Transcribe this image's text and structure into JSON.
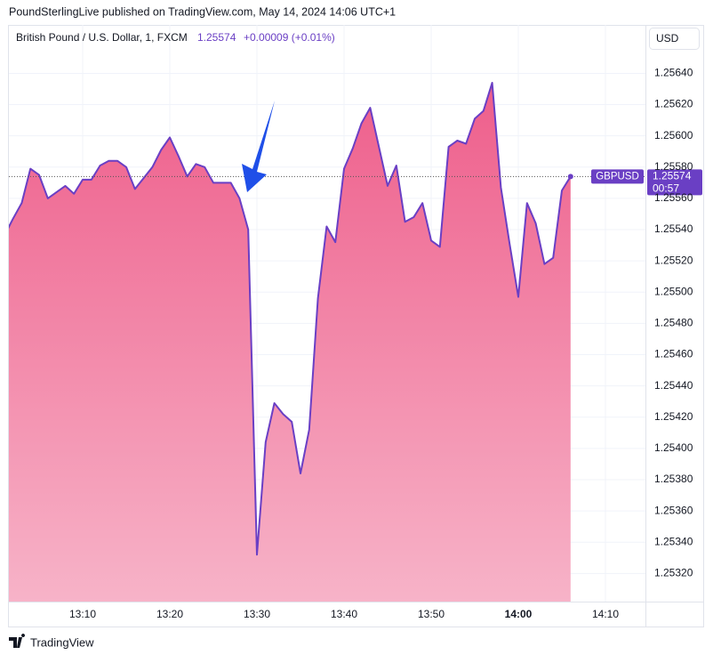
{
  "header": "PoundSterlingLive published on TradingView.com, May 14, 2024 14:06 UTC+1",
  "brand": "TradingView",
  "chart_data": {
    "type": "area",
    "legend_title": "British Pound / U.S. Dollar, 1, FXCM",
    "change": "+0.00009 (+0.01%)",
    "currency": "USD",
    "symbol": "GBPUSD",
    "countdown": "00:57",
    "line_color": "#6a3fc4",
    "fill_top": "#ee5e8b",
    "fill_bottom": "#f7b3c8",
    "x": [
      1,
      2,
      3,
      4,
      5,
      6,
      7,
      8,
      9,
      10,
      11,
      12,
      13,
      14,
      15,
      16,
      17,
      18,
      19,
      20,
      21,
      22,
      23,
      24,
      25,
      26,
      27,
      28,
      29,
      30,
      31,
      32,
      33,
      34,
      35,
      36,
      37,
      38,
      39,
      40,
      41,
      42,
      43,
      44,
      45,
      46,
      47,
      48,
      49,
      50,
      51,
      52,
      53,
      54,
      55,
      56,
      57,
      58,
      59,
      60,
      61,
      62,
      63,
      64,
      65,
      66
    ],
    "values": [
      1.25536,
      1.25547,
      1.25557,
      1.25579,
      1.25575,
      1.2556,
      1.25564,
      1.25568,
      1.25563,
      1.25572,
      1.25572,
      1.25581,
      1.25584,
      1.25584,
      1.2558,
      1.25566,
      1.25573,
      1.2558,
      1.25591,
      1.25599,
      1.25587,
      1.25574,
      1.25582,
      1.2558,
      1.2557,
      1.2557,
      1.2557,
      1.2556,
      1.2554,
      1.25332,
      1.25404,
      1.25429,
      1.25422,
      1.25417,
      1.25384,
      1.25412,
      1.25496,
      1.25542,
      1.25532,
      1.25579,
      1.25592,
      1.25608,
      1.25618,
      1.25593,
      1.25568,
      1.25581,
      1.25545,
      1.25548,
      1.25557,
      1.25533,
      1.25529,
      1.25593,
      1.25597,
      1.25595,
      1.25611,
      1.25616,
      1.25634,
      1.25567,
      1.25531,
      1.25497,
      1.25557,
      1.25544,
      1.25518,
      1.25522,
      1.25565,
      1.25574
    ],
    "xlim": [
      1.53,
      74.59
    ],
    "ylim": [
      1.25302,
      1.25671
    ],
    "xticks": [
      {
        "value": 10,
        "label": "13:10"
      },
      {
        "value": 20,
        "label": "13:20"
      },
      {
        "value": 30,
        "label": "13:30"
      },
      {
        "value": 40,
        "label": "13:40"
      },
      {
        "value": 50,
        "label": "13:50"
      },
      {
        "value": 60,
        "label": "14:00"
      },
      {
        "value": 70,
        "label": "14:10"
      }
    ],
    "yticks": [
      {
        "value": 1.2532,
        "label": "1.25320"
      },
      {
        "value": 1.2534,
        "label": "1.25340"
      },
      {
        "value": 1.2536,
        "label": "1.25360"
      },
      {
        "value": 1.2538,
        "label": "1.25380"
      },
      {
        "value": 1.254,
        "label": "1.25400"
      },
      {
        "value": 1.2542,
        "label": "1.25420"
      },
      {
        "value": 1.2544,
        "label": "1.25440"
      },
      {
        "value": 1.2546,
        "label": "1.25460"
      },
      {
        "value": 1.2548,
        "label": "1.25480"
      },
      {
        "value": 1.255,
        "label": "1.25500"
      },
      {
        "value": 1.2552,
        "label": "1.25520"
      },
      {
        "value": 1.2554,
        "label": "1.25540"
      },
      {
        "value": 1.2556,
        "label": "1.25560"
      },
      {
        "value": 1.2558,
        "label": "1.25580"
      },
      {
        "value": 1.256,
        "label": "1.25600"
      },
      {
        "value": 1.2562,
        "label": "1.25620"
      },
      {
        "value": 1.2564,
        "label": "1.25640"
      }
    ],
    "grid": true
  }
}
